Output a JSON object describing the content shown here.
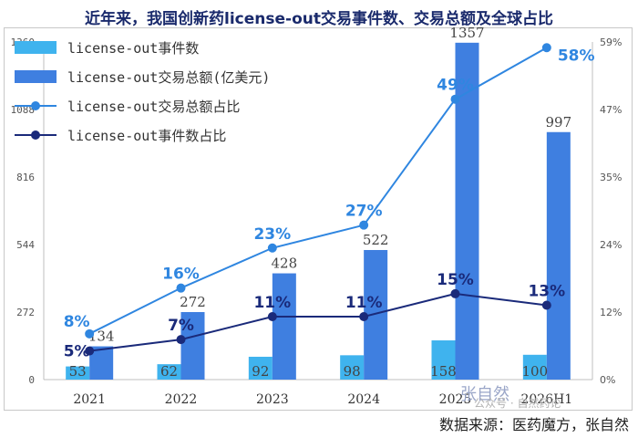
{
  "title": "近年来，我国创新药license-out交易事件数、交易总额及全球占比",
  "source": "数据来源：医药魔方，张自然",
  "watermark": "公众号 · 自然药论",
  "watermark_name": "张自然",
  "chart_data": {
    "type": "bar",
    "categories": [
      "2021",
      "2022",
      "2023",
      "2024",
      "2025",
      "2026H1"
    ],
    "y_left": {
      "ticks": [
        "0",
        "272",
        "544",
        "816",
        "1088",
        "1360"
      ],
      "ylim": [
        0,
        1360
      ]
    },
    "y_right": {
      "ticks": [
        "0%",
        "12%",
        "24%",
        "35%",
        "47%",
        "59%"
      ],
      "ylim": [
        0,
        59
      ]
    },
    "grid": false,
    "legend_position": "top-left",
    "series": [
      {
        "name": "license-out事件数",
        "kind": "bar",
        "axis": "left",
        "color": "#3fb3ee",
        "values": [
          53,
          62,
          92,
          98,
          158,
          100
        ],
        "labels": [
          "53",
          "62",
          "92",
          "98",
          "158",
          "100"
        ]
      },
      {
        "name": "license-out交易总额(亿美元)",
        "kind": "bar",
        "axis": "left",
        "color": "#3f7fe0",
        "values": [
          134,
          272,
          428,
          522,
          1357,
          997
        ],
        "labels": [
          "134",
          "272",
          "428",
          "522",
          "1357",
          "997"
        ]
      },
      {
        "name": "license-out交易总额占比",
        "kind": "line",
        "axis": "right",
        "color": "#2f86e0",
        "values": [
          8,
          16,
          23,
          27,
          49,
          58
        ],
        "labels": [
          "8%",
          "16%",
          "23%",
          "27%",
          "49%",
          "58%"
        ]
      },
      {
        "name": "license-out事件数占比",
        "kind": "line",
        "axis": "right",
        "color": "#1a2a7a",
        "values": [
          5,
          7,
          11,
          11,
          15,
          13
        ],
        "labels": [
          "5%",
          "7%",
          "11%",
          "11%",
          "15%",
          "13%"
        ]
      }
    ]
  }
}
